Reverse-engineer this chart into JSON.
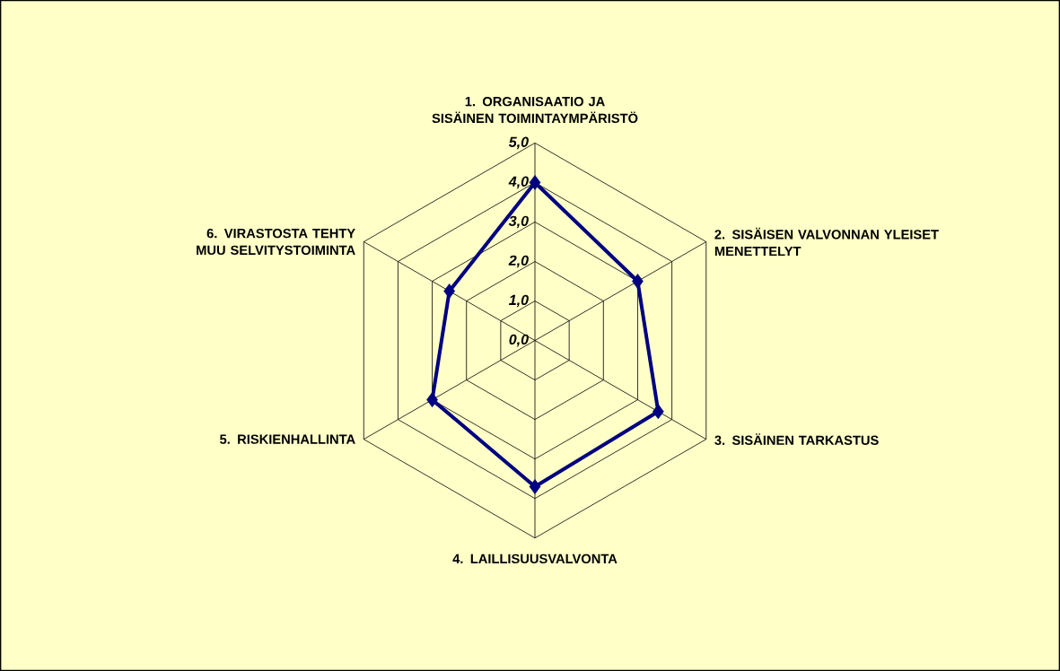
{
  "chart_data": {
    "type": "radar",
    "categories": [
      "1. ORGANISAATIO JA SISÄINEN TOIMINTAYMPÄRISTÖ",
      "2. SISÄISEN VALVONNAN YLEISET MENETTELYT",
      "3. SISÄINEN TARKASTUS",
      "4. LAILLISUUSVALVONTA",
      "5. RISKIENHALLINTA",
      "6. VIRASTOSTA TEHTY MUU SELVITYSTOIMINTA"
    ],
    "series": [
      {
        "color": "#000080",
        "values": [
          4.0,
          3.0,
          3.6,
          3.7,
          3.0,
          2.5
        ]
      }
    ],
    "ylim": [
      0,
      5
    ],
    "yticks": [
      {
        "value": 0,
        "label": "0,0"
      },
      {
        "value": 1,
        "label": "1,0"
      },
      {
        "value": 2,
        "label": "2,0"
      },
      {
        "value": 3,
        "label": "3,0"
      },
      {
        "value": 4,
        "label": "4,0"
      },
      {
        "value": 5,
        "label": "5,0"
      }
    ],
    "grid": true,
    "marker": "diamond",
    "line_style": "solid"
  }
}
